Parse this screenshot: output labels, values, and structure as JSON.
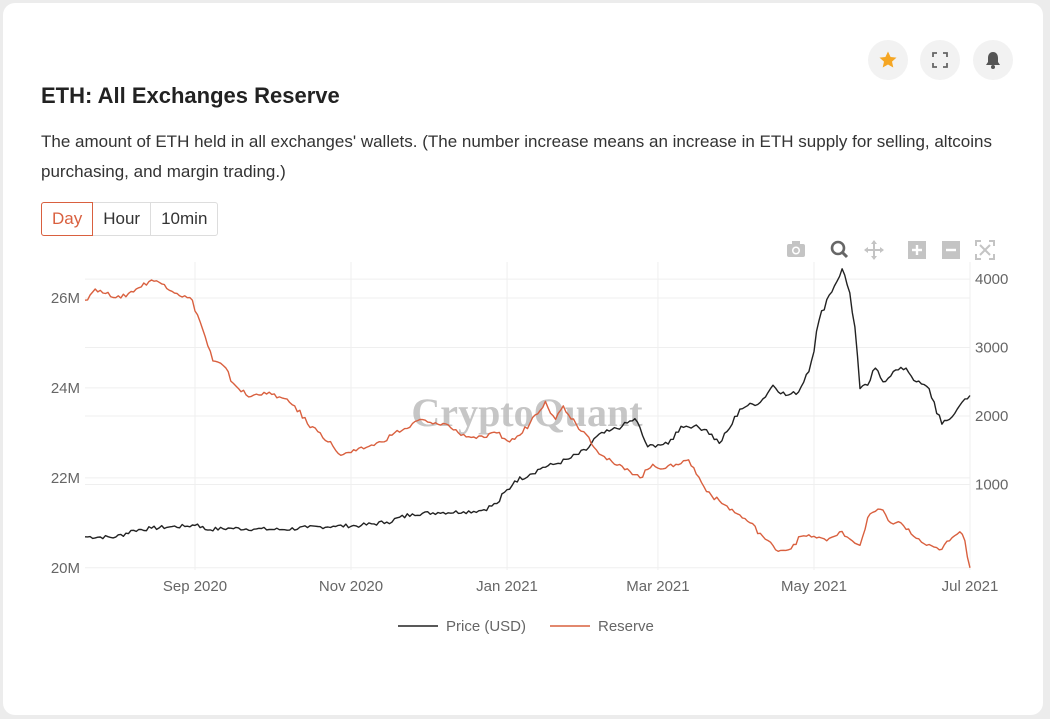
{
  "page": {
    "title": "ETH: All Exchanges Reserve",
    "description": "The amount of ETH held in all exchanges' wallets. (The number increase means an increase in ETH supply for selling, altcoins purchasing, and margin trading.)",
    "tabs": [
      {
        "label": "Day",
        "active": true
      },
      {
        "label": "Hour",
        "active": false
      },
      {
        "label": "10min",
        "active": false
      }
    ],
    "header_icons": [
      "star-icon",
      "expand-icon",
      "bell-icon"
    ],
    "toolbar_icons": [
      "camera-icon",
      "zoom-icon",
      "pan-icon",
      "zoom-in-icon",
      "zoom-out-icon",
      "autoscale-icon"
    ],
    "watermark": "CryptoQuant",
    "colors": {
      "accent": "#d9603f",
      "star": "#f5a623",
      "price": "#222222",
      "reserve": "#d9603f"
    }
  },
  "chart_data": {
    "type": "line",
    "x_range": [
      "2020-07-20",
      "2021-07-01"
    ],
    "x_ticks": [
      {
        "date": "2020-09-01",
        "label": "Sep 2020"
      },
      {
        "date": "2020-11-01",
        "label": "Nov 2020"
      },
      {
        "date": "2021-01-01",
        "label": "Jan 2021"
      },
      {
        "date": "2021-03-01",
        "label": "Mar 2021"
      },
      {
        "date": "2021-05-01",
        "label": "May 2021"
      },
      {
        "date": "2021-07-01",
        "label": "Jul 2021"
      }
    ],
    "y_left": {
      "ticks": [
        20,
        22,
        24,
        26
      ],
      "tick_labels": [
        "20M",
        "22M",
        "24M",
        "26M"
      ],
      "range": [
        19.95,
        26.8
      ],
      "unit": "M"
    },
    "y_right": {
      "ticks": [
        1000,
        2000,
        3000,
        4000
      ],
      "tick_labels": [
        "1000",
        "2000",
        "3000",
        "4000"
      ],
      "range": [
        -250,
        4250
      ]
    },
    "grid": true,
    "legend_position": "bottom",
    "series": [
      {
        "name": "Price (USD)",
        "axis": "right",
        "color": "#222222",
        "points": [
          [
            "2020-07-20",
            235
          ],
          [
            "2020-08-01",
            230
          ],
          [
            "2020-08-08",
            330
          ],
          [
            "2020-08-15",
            360
          ],
          [
            "2020-08-22",
            380
          ],
          [
            "2020-08-29",
            390
          ],
          [
            "2020-09-02",
            420
          ],
          [
            "2020-09-05",
            340
          ],
          [
            "2020-09-15",
            360
          ],
          [
            "2020-09-25",
            350
          ],
          [
            "2020-10-05",
            340
          ],
          [
            "2020-10-15",
            370
          ],
          [
            "2020-10-25",
            390
          ],
          [
            "2020-11-05",
            400
          ],
          [
            "2020-11-15",
            450
          ],
          [
            "2020-11-25",
            570
          ],
          [
            "2020-12-05",
            590
          ],
          [
            "2020-12-15",
            600
          ],
          [
            "2020-12-22",
            620
          ],
          [
            "2020-12-28",
            720
          ],
          [
            "2021-01-04",
            1050
          ],
          [
            "2021-01-10",
            1150
          ],
          [
            "2021-01-15",
            1250
          ],
          [
            "2021-01-20",
            1300
          ],
          [
            "2021-01-25",
            1370
          ],
          [
            "2021-02-01",
            1500
          ],
          [
            "2021-02-05",
            1700
          ],
          [
            "2021-02-10",
            1780
          ],
          [
            "2021-02-15",
            1850
          ],
          [
            "2021-02-20",
            1960
          ],
          [
            "2021-02-25",
            1550
          ],
          [
            "2021-03-01",
            1580
          ],
          [
            "2021-03-05",
            1590
          ],
          [
            "2021-03-10",
            1850
          ],
          [
            "2021-03-15",
            1850
          ],
          [
            "2021-03-20",
            1800
          ],
          [
            "2021-03-25",
            1600
          ],
          [
            "2021-03-29",
            1820
          ],
          [
            "2021-04-02",
            2100
          ],
          [
            "2021-04-05",
            2150
          ],
          [
            "2021-04-10",
            2200
          ],
          [
            "2021-04-15",
            2450
          ],
          [
            "2021-04-20",
            2300
          ],
          [
            "2021-04-25",
            2350
          ],
          [
            "2021-04-30",
            2800
          ],
          [
            "2021-05-03",
            3400
          ],
          [
            "2021-05-06",
            3700
          ],
          [
            "2021-05-09",
            3900
          ],
          [
            "2021-05-12",
            4150
          ],
          [
            "2021-05-15",
            3800
          ],
          [
            "2021-05-17",
            3300
          ],
          [
            "2021-05-19",
            2400
          ],
          [
            "2021-05-22",
            2450
          ],
          [
            "2021-05-25",
            2700
          ],
          [
            "2021-05-28",
            2500
          ],
          [
            "2021-06-01",
            2650
          ],
          [
            "2021-06-06",
            2700
          ],
          [
            "2021-06-10",
            2500
          ],
          [
            "2021-06-15",
            2400
          ],
          [
            "2021-06-20",
            1880
          ],
          [
            "2021-06-23",
            1950
          ],
          [
            "2021-06-26",
            2100
          ],
          [
            "2021-06-29",
            2250
          ],
          [
            "2021-07-01",
            2300
          ]
        ]
      },
      {
        "name": "Reserve",
        "axis": "left",
        "color": "#d9603f",
        "points": [
          [
            "2020-07-20",
            25.95
          ],
          [
            "2020-07-24",
            26.2
          ],
          [
            "2020-07-28",
            26.1
          ],
          [
            "2020-08-03",
            26.0
          ],
          [
            "2020-08-09",
            26.2
          ],
          [
            "2020-08-15",
            26.4
          ],
          [
            "2020-08-20",
            26.3
          ],
          [
            "2020-08-25",
            26.1
          ],
          [
            "2020-08-31",
            25.95
          ],
          [
            "2020-09-04",
            25.3
          ],
          [
            "2020-09-08",
            24.6
          ],
          [
            "2020-09-12",
            24.5
          ],
          [
            "2020-09-16",
            24.1
          ],
          [
            "2020-09-22",
            23.8
          ],
          [
            "2020-09-28",
            23.9
          ],
          [
            "2020-10-04",
            23.8
          ],
          [
            "2020-10-10",
            23.6
          ],
          [
            "2020-10-15",
            23.2
          ],
          [
            "2020-10-20",
            23.0
          ],
          [
            "2020-10-25",
            22.7
          ],
          [
            "2020-10-28",
            22.5
          ],
          [
            "2020-11-03",
            22.6
          ],
          [
            "2020-11-08",
            22.7
          ],
          [
            "2020-11-13",
            22.8
          ],
          [
            "2020-11-18",
            23.0
          ],
          [
            "2020-11-23",
            23.1
          ],
          [
            "2020-11-28",
            23.3
          ],
          [
            "2020-12-03",
            23.2
          ],
          [
            "2020-12-08",
            23.2
          ],
          [
            "2020-12-13",
            23.0
          ],
          [
            "2020-12-18",
            22.9
          ],
          [
            "2020-12-23",
            22.9
          ],
          [
            "2020-12-28",
            23.0
          ],
          [
            "2021-01-02",
            22.8
          ],
          [
            "2021-01-07",
            23.0
          ],
          [
            "2021-01-12",
            23.4
          ],
          [
            "2021-01-16",
            23.7
          ],
          [
            "2021-01-20",
            23.3
          ],
          [
            "2021-01-23",
            23.6
          ],
          [
            "2021-01-28",
            23.2
          ],
          [
            "2021-02-02",
            22.9
          ],
          [
            "2021-02-07",
            22.5
          ],
          [
            "2021-02-12",
            22.3
          ],
          [
            "2021-02-17",
            22.2
          ],
          [
            "2021-02-22",
            22.0
          ],
          [
            "2021-02-27",
            22.3
          ],
          [
            "2021-03-03",
            22.2
          ],
          [
            "2021-03-08",
            22.3
          ],
          [
            "2021-03-13",
            22.4
          ],
          [
            "2021-03-18",
            21.9
          ],
          [
            "2021-03-22",
            21.6
          ],
          [
            "2021-03-27",
            21.4
          ],
          [
            "2021-04-01",
            21.2
          ],
          [
            "2021-04-06",
            21.0
          ],
          [
            "2021-04-11",
            20.7
          ],
          [
            "2021-04-16",
            20.4
          ],
          [
            "2021-04-21",
            20.4
          ],
          [
            "2021-04-26",
            20.7
          ],
          [
            "2021-05-01",
            20.7
          ],
          [
            "2021-05-06",
            20.6
          ],
          [
            "2021-05-11",
            20.8
          ],
          [
            "2021-05-16",
            20.6
          ],
          [
            "2021-05-19",
            20.5
          ],
          [
            "2021-05-23",
            21.2
          ],
          [
            "2021-05-27",
            21.3
          ],
          [
            "2021-05-31",
            21.0
          ],
          [
            "2021-06-04",
            21.0
          ],
          [
            "2021-06-09",
            20.7
          ],
          [
            "2021-06-14",
            20.5
          ],
          [
            "2021-06-19",
            20.4
          ],
          [
            "2021-06-23",
            20.6
          ],
          [
            "2021-06-27",
            20.8
          ],
          [
            "2021-06-29",
            20.6
          ],
          [
            "2021-07-01",
            20.0
          ]
        ]
      }
    ]
  }
}
